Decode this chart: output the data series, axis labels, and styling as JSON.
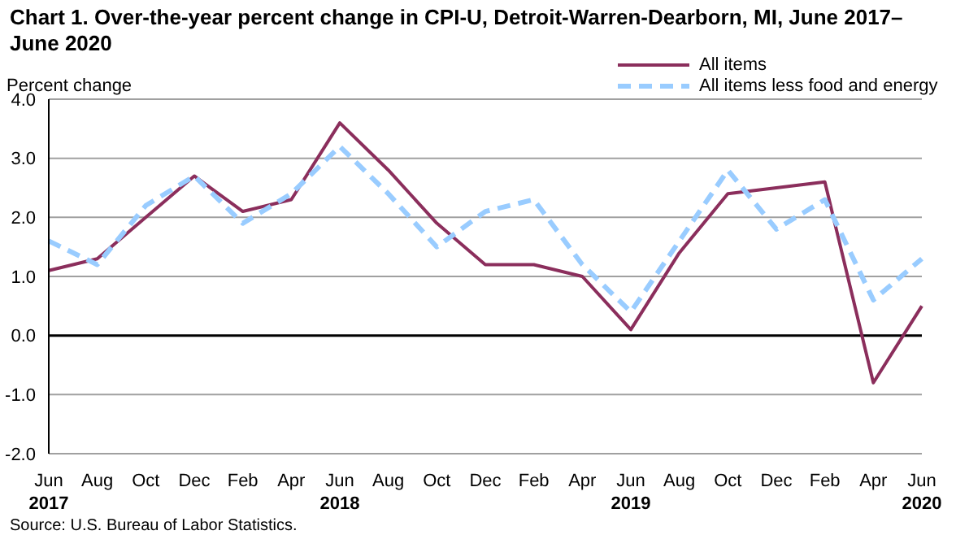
{
  "chart_data": {
    "type": "line",
    "title": "Chart 1. Over-the-year percent change in CPI-U, Detroit-Warren-Dearborn, MI, June 2017–June 2020",
    "ylabel": "Percent change",
    "categories": [
      "Jun 2017",
      "Aug",
      "Oct",
      "Dec",
      "Feb",
      "Apr",
      "Jun 2018",
      "Aug",
      "Oct",
      "Dec",
      "Feb",
      "Apr",
      "Jun 2019",
      "Aug",
      "Oct",
      "Dec",
      "Feb",
      "Apr",
      "Jun 2020"
    ],
    "series": [
      {
        "name": "All items",
        "color": "#8b2e5c",
        "line_style": "solid",
        "values": [
          1.1,
          1.3,
          2.0,
          2.7,
          2.1,
          2.3,
          3.6,
          2.8,
          1.9,
          1.2,
          1.2,
          1.0,
          0.1,
          1.4,
          2.4,
          2.5,
          2.6,
          -0.8,
          0.5
        ]
      },
      {
        "name": "All items less food and energy",
        "color": "#99ccff",
        "line_style": "dashed",
        "values": [
          1.6,
          1.2,
          2.2,
          2.7,
          1.9,
          2.4,
          3.2,
          2.4,
          1.5,
          2.1,
          2.3,
          1.2,
          0.4,
          1.6,
          2.8,
          1.8,
          2.3,
          0.6,
          1.3
        ]
      }
    ],
    "ylim": [
      -2,
      4
    ],
    "yticks": [
      {
        "value": -2,
        "label": "-2.0"
      },
      {
        "value": -1,
        "label": "-1.0"
      },
      {
        "value": 0,
        "label": "0.0"
      },
      {
        "value": 1,
        "label": "1.0"
      },
      {
        "value": 2,
        "label": "2.0"
      },
      {
        "value": 3,
        "label": "3.0"
      },
      {
        "value": 4,
        "label": "4.0"
      }
    ],
    "grid": "y",
    "legend": "top right",
    "marker": "none",
    "annotations": [
      "Source: U.S. Bureau of Labor Statistics."
    ]
  }
}
